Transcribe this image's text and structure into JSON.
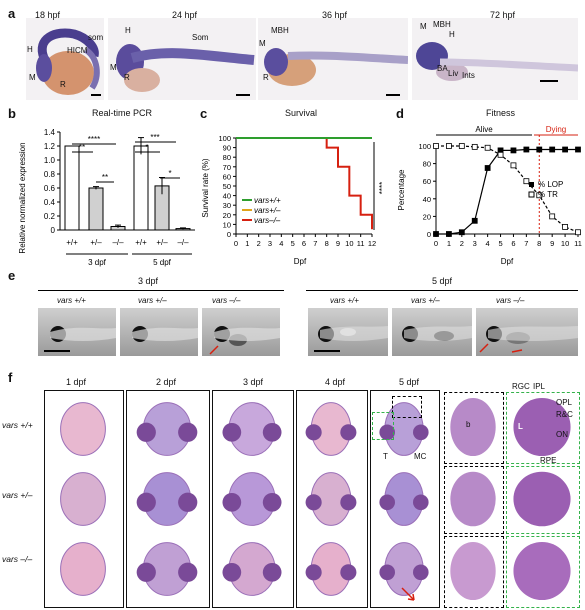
{
  "panels": {
    "a": {
      "letter": "a",
      "stages": [
        "18 hpf",
        "24 hpf",
        "36 hpf",
        "72 hpf"
      ],
      "labels_18": {
        "h": "H",
        "hicm": "HICM",
        "som": "som",
        "m": "M",
        "r": "R"
      },
      "labels_24": {
        "h": "H",
        "som": "Som",
        "m": "M",
        "r": "R"
      },
      "labels_36": {
        "mbh": "MBH",
        "m": "M",
        "r": "R"
      },
      "labels_72": {
        "m": "M",
        "mbh": "MBH",
        "h": "H",
        "ba": "BA",
        "liv": "Liv",
        "ints": "Ints"
      }
    },
    "b": {
      "letter": "b",
      "title": "Real-time PCR",
      "ylabel": "Relative normalized expression",
      "groups": [
        "3 dpf",
        "5 dpf"
      ],
      "sig": [
        "****",
        "**",
        "**",
        "***",
        "*",
        "*"
      ]
    },
    "c": {
      "letter": "c",
      "title": "Survival",
      "ylabel": "Survival rate (%)",
      "xlabel": "Dpf",
      "legend": [
        "vars+/+",
        "vars+/–",
        "vars–/–"
      ],
      "sig": "****"
    },
    "d": {
      "letter": "d",
      "title": "Fitness",
      "ylabel": "Percentage",
      "xlabel": "Dpf",
      "alive": "Alive",
      "dying": "Dying",
      "legend": [
        "% LOP",
        "% TR"
      ]
    },
    "e": {
      "letter": "e",
      "groups": [
        "3 dpf",
        "5 dpf"
      ],
      "genotypes": [
        "vars +/+",
        "vars +/–",
        "vars –/–",
        "vars +/+",
        "vars +/–",
        "vars –/–"
      ]
    },
    "f": {
      "letter": "f",
      "columns": [
        "1 dpf",
        "2 dpf",
        "3 dpf",
        "4 dpf",
        "5 dpf"
      ],
      "rows": [
        "vars +/+",
        "vars +/–",
        "vars –/–"
      ],
      "labels": {
        "t": "T",
        "mc": "MC",
        "b": "b",
        "l": "L",
        "rgc": "RGC",
        "ipl": "IPL",
        "opl": "OPL",
        "rc": "R&C",
        "on": "ON",
        "rpe": "RPE"
      }
    }
  },
  "chart_data": [
    {
      "type": "bar",
      "title": "Real-time PCR",
      "ylabel": "Relative normalized expression",
      "categories": [
        "+/+",
        "+/–",
        "–/–",
        "+/+",
        "+/–",
        "–/–"
      ],
      "groups": [
        "3 dpf",
        "3 dpf",
        "3 dpf",
        "5 dpf",
        "5 dpf",
        "5 dpf"
      ],
      "values": [
        1.2,
        0.6,
        0.05,
        1.2,
        0.63,
        0.02
      ],
      "errors": [
        0.0,
        0.02,
        0.02,
        0.12,
        0.12,
        0.01
      ],
      "yticks": [
        0,
        0.2,
        0.4,
        0.6,
        0.8,
        1.0,
        1.2,
        1.4
      ],
      "ylim": [
        0,
        1.4
      ]
    },
    {
      "type": "line",
      "title": "Survival",
      "xlabel": "Dpf",
      "ylabel": "Survival rate (%)",
      "x": [
        0,
        1,
        2,
        3,
        4,
        5,
        6,
        7,
        8,
        9,
        10,
        11,
        12
      ],
      "xlim": [
        0,
        12
      ],
      "ylim": [
        0,
        100
      ],
      "yticks": [
        0,
        10,
        20,
        30,
        40,
        50,
        60,
        70,
        80,
        90,
        100
      ],
      "series": [
        {
          "name": "vars+/+",
          "color": "#2e9e2e",
          "x": [
            0,
            12
          ],
          "y": [
            100,
            100
          ]
        },
        {
          "name": "vars+/–",
          "color": "#e0a31a",
          "x": [
            0,
            12
          ],
          "y": [
            100,
            100
          ]
        },
        {
          "name": "vars–/–",
          "color": "#d62010",
          "x": [
            0,
            8,
            8,
            9,
            9,
            10,
            10,
            11,
            11,
            12,
            12
          ],
          "y": [
            100,
            100,
            90,
            90,
            70,
            70,
            40,
            40,
            20,
            20,
            5
          ]
        }
      ]
    },
    {
      "type": "line",
      "title": "Fitness",
      "xlabel": "Dpf",
      "ylabel": "Percentage",
      "x": [
        0,
        1,
        2,
        3,
        4,
        5,
        6,
        7,
        8,
        9,
        10,
        11
      ],
      "xlim": [
        0,
        11
      ],
      "ylim": [
        0,
        100
      ],
      "yticks": [
        0,
        20,
        40,
        60,
        80,
        100
      ],
      "dying_threshold_dpf": 8,
      "series": [
        {
          "name": "% LOP",
          "color": "#000000",
          "marker": "filled-square",
          "x": [
            0,
            1,
            2,
            3,
            4,
            5,
            6,
            7,
            8,
            9,
            10,
            11
          ],
          "y": [
            0,
            0,
            2,
            15,
            75,
            95,
            95,
            96,
            96,
            96,
            96,
            96
          ]
        },
        {
          "name": "% TR",
          "color": "#000000",
          "marker": "open-square",
          "x": [
            0,
            1,
            2,
            3,
            4,
            5,
            6,
            7,
            8,
            9,
            10,
            11
          ],
          "y": [
            100,
            100,
            100,
            99,
            98,
            90,
            78,
            60,
            44,
            20,
            8,
            2
          ]
        }
      ]
    }
  ]
}
